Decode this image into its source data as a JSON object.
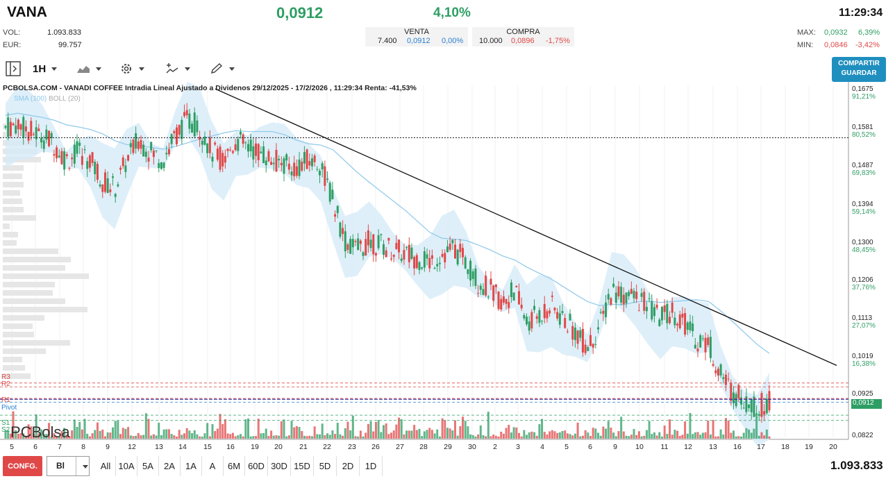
{
  "header": {
    "ticker": "VANA",
    "price": "0,0912",
    "change_pct": "4,10%",
    "time": "11:29:34",
    "vol_label": "VOL:",
    "vol_value": "1.093.833",
    "eur_label": "EUR:",
    "eur_value": "99.757",
    "max_label": "MAX:",
    "max_value": "0,0932",
    "max_pct": "6,39%",
    "min_label": "MIN:",
    "min_value": "0,0846",
    "min_pct": "-3,42%"
  },
  "quotes": {
    "venta_label": "VENTA",
    "venta_qty": "7.400",
    "venta_price": "0,0912",
    "venta_pct": "0,00%",
    "compra_label": "COMPRA",
    "compra_qty": "10.000",
    "compra_price": "0,0896",
    "compra_pct": "-1,75%"
  },
  "toolbar": {
    "interval": "1H",
    "share_line1": "COMPARTIR",
    "share_line2": "GUARDAR"
  },
  "chart_title": "PCBOLSA.COM - VANADI COFFEE Intradia Lineal Ajustado a Dividenos 29/12/2025 - 17/2/2026 , 11:29:34 Renta: -41,53%",
  "legend": {
    "sma": "SMA (100)",
    "boll": "BOLL (20)"
  },
  "y_axis": [
    {
      "price": "0,1675",
      "pct": "91,21%"
    },
    {
      "price": "0,1581",
      "pct": "80,52%"
    },
    {
      "price": "0,1487",
      "pct": "69,83%"
    },
    {
      "price": "0,1394",
      "pct": "59,14%"
    },
    {
      "price": "0,1300",
      "pct": "48,45%"
    },
    {
      "price": "0,1206",
      "pct": "37,76%"
    },
    {
      "price": "0,1113",
      "pct": "27,07%"
    },
    {
      "price": "0,1019",
      "pct": "16,38%"
    },
    {
      "price": "0,0925",
      "pct": ""
    },
    {
      "price": "0,0822",
      "pct": ""
    }
  ],
  "current_price_label": "0,0912",
  "x_axis": [
    "5",
    "6",
    "7",
    "8",
    "9",
    "12",
    "13",
    "14",
    "15",
    "16",
    "19",
    "20",
    "21",
    "22",
    "23",
    "26",
    "27",
    "28",
    "29",
    "30",
    "2",
    "3",
    "4",
    "5",
    "6",
    "9",
    "10",
    "11",
    "12",
    "13",
    "16",
    "17",
    "18",
    "19",
    "20"
  ],
  "pivots": {
    "r3": "R3",
    "r2": "R2",
    "r1": "R1",
    "pivot": "Pivot",
    "s1": "S1",
    "s2": "S2"
  },
  "logo": "PCBolsa",
  "bottom": {
    "conf": "CONFG.",
    "select": "Bl",
    "ranges": [
      "All",
      "10A",
      "5A",
      "2A",
      "1A",
      "A",
      "6M",
      "60D",
      "30D",
      "15D",
      "5D",
      "2D",
      "1D"
    ],
    "volume": "1.093.833"
  },
  "colors": {
    "up": "#2e9e64",
    "down": "#e04848",
    "band": "#d6ebf8",
    "sma": "#8cc8ea"
  },
  "chart_data": {
    "type": "candlestick",
    "title": "PCBOLSA.COM - VANADI COFFEE Intradia Lineal Ajustado a Dividenos 29/12/2025 - 17/2/2026 , 11:29:34 Renta: -41,53%",
    "ylim": [
      0.0822,
      0.1675
    ],
    "close_path": [
      0.158,
      0.159,
      0.157,
      0.156,
      0.154,
      0.15,
      0.152,
      0.15,
      0.145,
      0.143,
      0.15,
      0.155,
      0.152,
      0.15,
      0.156,
      0.16,
      0.158,
      0.152,
      0.15,
      0.155,
      0.153,
      0.152,
      0.15,
      0.149,
      0.148,
      0.15,
      0.149,
      0.14,
      0.13,
      0.128,
      0.13,
      0.129,
      0.128,
      0.127,
      0.126,
      0.125,
      0.127,
      0.128,
      0.125,
      0.12,
      0.118,
      0.115,
      0.118,
      0.11,
      0.112,
      0.114,
      0.111,
      0.108,
      0.104,
      0.109,
      0.118,
      0.117,
      0.116,
      0.114,
      0.111,
      0.113,
      0.11,
      0.106,
      0.105,
      0.097,
      0.093,
      0.091,
      0.089,
      0.0912
    ],
    "last": 0.0912
  }
}
